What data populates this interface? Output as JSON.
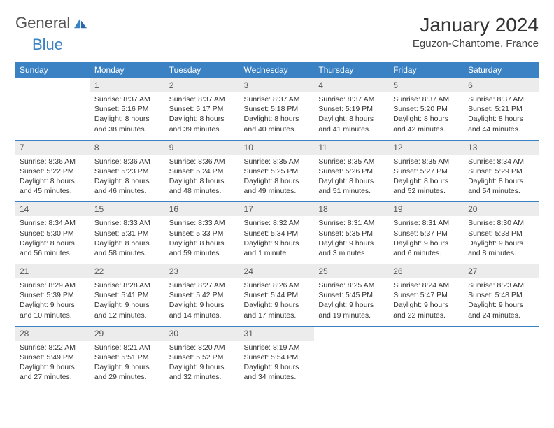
{
  "logo": {
    "text1": "General",
    "text2": "Blue"
  },
  "title": "January 2024",
  "location": "Eguzon-Chantome, France",
  "colors": {
    "header_bg": "#3b82c4",
    "daynum_bg": "#ececec",
    "rule": "#3b82c4"
  },
  "weekdays": [
    "Sunday",
    "Monday",
    "Tuesday",
    "Wednesday",
    "Thursday",
    "Friday",
    "Saturday"
  ],
  "weeks": [
    {
      "nums": [
        "",
        "1",
        "2",
        "3",
        "4",
        "5",
        "6"
      ],
      "cells": [
        null,
        {
          "sunrise": "Sunrise: 8:37 AM",
          "sunset": "Sunset: 5:16 PM",
          "day1": "Daylight: 8 hours",
          "day2": "and 38 minutes."
        },
        {
          "sunrise": "Sunrise: 8:37 AM",
          "sunset": "Sunset: 5:17 PM",
          "day1": "Daylight: 8 hours",
          "day2": "and 39 minutes."
        },
        {
          "sunrise": "Sunrise: 8:37 AM",
          "sunset": "Sunset: 5:18 PM",
          "day1": "Daylight: 8 hours",
          "day2": "and 40 minutes."
        },
        {
          "sunrise": "Sunrise: 8:37 AM",
          "sunset": "Sunset: 5:19 PM",
          "day1": "Daylight: 8 hours",
          "day2": "and 41 minutes."
        },
        {
          "sunrise": "Sunrise: 8:37 AM",
          "sunset": "Sunset: 5:20 PM",
          "day1": "Daylight: 8 hours",
          "day2": "and 42 minutes."
        },
        {
          "sunrise": "Sunrise: 8:37 AM",
          "sunset": "Sunset: 5:21 PM",
          "day1": "Daylight: 8 hours",
          "day2": "and 44 minutes."
        }
      ]
    },
    {
      "nums": [
        "7",
        "8",
        "9",
        "10",
        "11",
        "12",
        "13"
      ],
      "cells": [
        {
          "sunrise": "Sunrise: 8:36 AM",
          "sunset": "Sunset: 5:22 PM",
          "day1": "Daylight: 8 hours",
          "day2": "and 45 minutes."
        },
        {
          "sunrise": "Sunrise: 8:36 AM",
          "sunset": "Sunset: 5:23 PM",
          "day1": "Daylight: 8 hours",
          "day2": "and 46 minutes."
        },
        {
          "sunrise": "Sunrise: 8:36 AM",
          "sunset": "Sunset: 5:24 PM",
          "day1": "Daylight: 8 hours",
          "day2": "and 48 minutes."
        },
        {
          "sunrise": "Sunrise: 8:35 AM",
          "sunset": "Sunset: 5:25 PM",
          "day1": "Daylight: 8 hours",
          "day2": "and 49 minutes."
        },
        {
          "sunrise": "Sunrise: 8:35 AM",
          "sunset": "Sunset: 5:26 PM",
          "day1": "Daylight: 8 hours",
          "day2": "and 51 minutes."
        },
        {
          "sunrise": "Sunrise: 8:35 AM",
          "sunset": "Sunset: 5:27 PM",
          "day1": "Daylight: 8 hours",
          "day2": "and 52 minutes."
        },
        {
          "sunrise": "Sunrise: 8:34 AM",
          "sunset": "Sunset: 5:29 PM",
          "day1": "Daylight: 8 hours",
          "day2": "and 54 minutes."
        }
      ]
    },
    {
      "nums": [
        "14",
        "15",
        "16",
        "17",
        "18",
        "19",
        "20"
      ],
      "cells": [
        {
          "sunrise": "Sunrise: 8:34 AM",
          "sunset": "Sunset: 5:30 PM",
          "day1": "Daylight: 8 hours",
          "day2": "and 56 minutes."
        },
        {
          "sunrise": "Sunrise: 8:33 AM",
          "sunset": "Sunset: 5:31 PM",
          "day1": "Daylight: 8 hours",
          "day2": "and 58 minutes."
        },
        {
          "sunrise": "Sunrise: 8:33 AM",
          "sunset": "Sunset: 5:33 PM",
          "day1": "Daylight: 8 hours",
          "day2": "and 59 minutes."
        },
        {
          "sunrise": "Sunrise: 8:32 AM",
          "sunset": "Sunset: 5:34 PM",
          "day1": "Daylight: 9 hours",
          "day2": "and 1 minute."
        },
        {
          "sunrise": "Sunrise: 8:31 AM",
          "sunset": "Sunset: 5:35 PM",
          "day1": "Daylight: 9 hours",
          "day2": "and 3 minutes."
        },
        {
          "sunrise": "Sunrise: 8:31 AM",
          "sunset": "Sunset: 5:37 PM",
          "day1": "Daylight: 9 hours",
          "day2": "and 6 minutes."
        },
        {
          "sunrise": "Sunrise: 8:30 AM",
          "sunset": "Sunset: 5:38 PM",
          "day1": "Daylight: 9 hours",
          "day2": "and 8 minutes."
        }
      ]
    },
    {
      "nums": [
        "21",
        "22",
        "23",
        "24",
        "25",
        "26",
        "27"
      ],
      "cells": [
        {
          "sunrise": "Sunrise: 8:29 AM",
          "sunset": "Sunset: 5:39 PM",
          "day1": "Daylight: 9 hours",
          "day2": "and 10 minutes."
        },
        {
          "sunrise": "Sunrise: 8:28 AM",
          "sunset": "Sunset: 5:41 PM",
          "day1": "Daylight: 9 hours",
          "day2": "and 12 minutes."
        },
        {
          "sunrise": "Sunrise: 8:27 AM",
          "sunset": "Sunset: 5:42 PM",
          "day1": "Daylight: 9 hours",
          "day2": "and 14 minutes."
        },
        {
          "sunrise": "Sunrise: 8:26 AM",
          "sunset": "Sunset: 5:44 PM",
          "day1": "Daylight: 9 hours",
          "day2": "and 17 minutes."
        },
        {
          "sunrise": "Sunrise: 8:25 AM",
          "sunset": "Sunset: 5:45 PM",
          "day1": "Daylight: 9 hours",
          "day2": "and 19 minutes."
        },
        {
          "sunrise": "Sunrise: 8:24 AM",
          "sunset": "Sunset: 5:47 PM",
          "day1": "Daylight: 9 hours",
          "day2": "and 22 minutes."
        },
        {
          "sunrise": "Sunrise: 8:23 AM",
          "sunset": "Sunset: 5:48 PM",
          "day1": "Daylight: 9 hours",
          "day2": "and 24 minutes."
        }
      ]
    },
    {
      "nums": [
        "28",
        "29",
        "30",
        "31",
        "",
        "",
        ""
      ],
      "cells": [
        {
          "sunrise": "Sunrise: 8:22 AM",
          "sunset": "Sunset: 5:49 PM",
          "day1": "Daylight: 9 hours",
          "day2": "and 27 minutes."
        },
        {
          "sunrise": "Sunrise: 8:21 AM",
          "sunset": "Sunset: 5:51 PM",
          "day1": "Daylight: 9 hours",
          "day2": "and 29 minutes."
        },
        {
          "sunrise": "Sunrise: 8:20 AM",
          "sunset": "Sunset: 5:52 PM",
          "day1": "Daylight: 9 hours",
          "day2": "and 32 minutes."
        },
        {
          "sunrise": "Sunrise: 8:19 AM",
          "sunset": "Sunset: 5:54 PM",
          "day1": "Daylight: 9 hours",
          "day2": "and 34 minutes."
        },
        null,
        null,
        null
      ]
    }
  ]
}
